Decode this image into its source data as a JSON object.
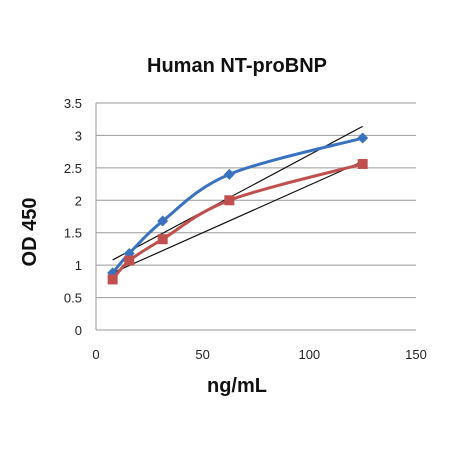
{
  "chart_data": {
    "type": "line",
    "title": "Human NT-proBNP",
    "xlabel": "ng/mL",
    "ylabel": "OD 450",
    "xlim": [
      0,
      150
    ],
    "ylim": [
      0,
      3.5
    ],
    "x_ticks": [
      0,
      50,
      100,
      150
    ],
    "y_ticks": [
      0,
      0.5,
      1,
      1.5,
      2,
      2.5,
      3,
      3.5
    ],
    "x_tick_labels": [
      "0",
      "50",
      "100",
      "150"
    ],
    "y_tick_labels": [
      "0",
      "0.5",
      "1",
      "1.5",
      "2",
      "2.5",
      "3",
      "3.5"
    ],
    "grid": "horizontal",
    "legend": "none",
    "series": [
      {
        "marker": "diamond",
        "color": "#3a72c0",
        "smooth": true,
        "x": [
          7.8,
          15.6,
          31.25,
          62.5,
          125
        ],
        "y": [
          0.88,
          1.18,
          1.68,
          2.4,
          2.96
        ]
      },
      {
        "marker": "square",
        "color": "#c0504d",
        "smooth": true,
        "x": [
          7.8,
          15.6,
          31.25,
          62.5,
          125
        ],
        "y": [
          0.78,
          1.07,
          1.4,
          2.0,
          2.56
        ]
      }
    ],
    "trendlines": [
      {
        "color": "#111111",
        "x": [
          7.8,
          125
        ],
        "y": [
          1.08,
          3.14
        ]
      },
      {
        "color": "#111111",
        "x": [
          7.8,
          125
        ],
        "y": [
          0.88,
          2.6
        ]
      }
    ]
  }
}
